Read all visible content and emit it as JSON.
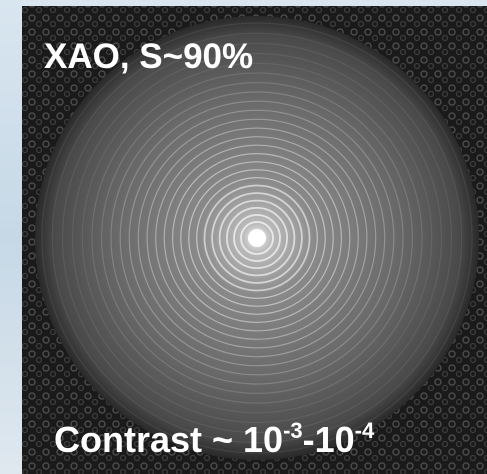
{
  "title": "XAO, S~90%",
  "caption": {
    "base": "Contrast ~ 10",
    "exponent_1": "-3",
    "middle": "-10",
    "exponent_2": "-4"
  }
}
